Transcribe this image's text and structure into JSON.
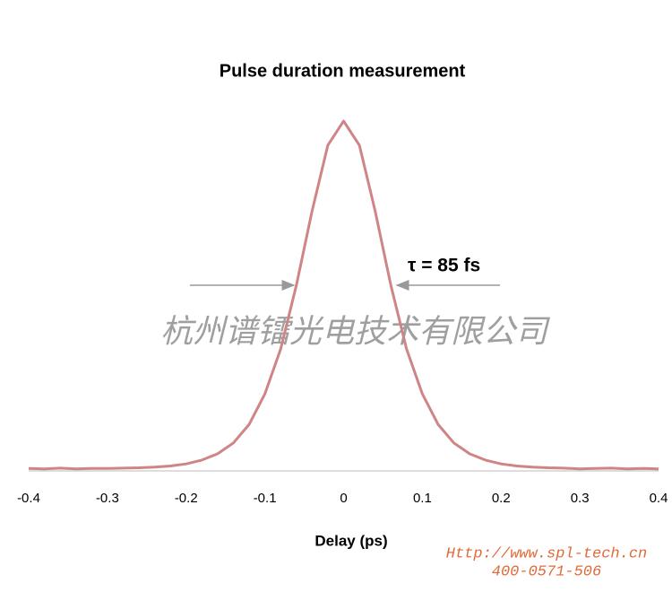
{
  "chart_data": {
    "type": "line",
    "title": "Pulse duration measurement",
    "x_label": "Delay (ps)",
    "x": [
      -0.4,
      -0.38,
      -0.36,
      -0.34,
      -0.32,
      -0.3,
      -0.28,
      -0.26,
      -0.24,
      -0.22,
      -0.2,
      -0.18,
      -0.16,
      -0.14,
      -0.12,
      -0.1,
      -0.08,
      -0.06,
      -0.04,
      -0.02,
      0,
      0.02,
      0.04,
      0.06,
      0.08,
      0.1,
      0.12,
      0.14,
      0.16,
      0.18,
      0.2,
      0.22,
      0.24,
      0.26,
      0.28,
      0.3,
      0.32,
      0.34,
      0.36,
      0.38,
      0.4
    ],
    "values": [
      0.007,
      0.006,
      0.008,
      0.006,
      0.007,
      0.007,
      0.008,
      0.009,
      0.011,
      0.014,
      0.02,
      0.031,
      0.049,
      0.08,
      0.133,
      0.22,
      0.348,
      0.531,
      0.744,
      0.931,
      1.0,
      0.931,
      0.744,
      0.531,
      0.348,
      0.22,
      0.133,
      0.08,
      0.049,
      0.031,
      0.02,
      0.014,
      0.011,
      0.009,
      0.008,
      0.006,
      0.007,
      0.008,
      0.006,
      0.007,
      0.006
    ],
    "color": "#cf8585",
    "xlim": [
      -0.4,
      0.4
    ],
    "ylim": [
      0,
      1
    ],
    "xticks": [
      -0.4,
      -0.3,
      -0.2,
      -0.1,
      {
        "value": 0,
        "label": "0"
      },
      0.1,
      0.2,
      0.3,
      0.4
    ],
    "annotations": [
      "τ = 85 fs",
      "杭州谱镭光电技术有限公司",
      "Http://www.spl-tech.cn",
      "400-0571-506"
    ]
  }
}
